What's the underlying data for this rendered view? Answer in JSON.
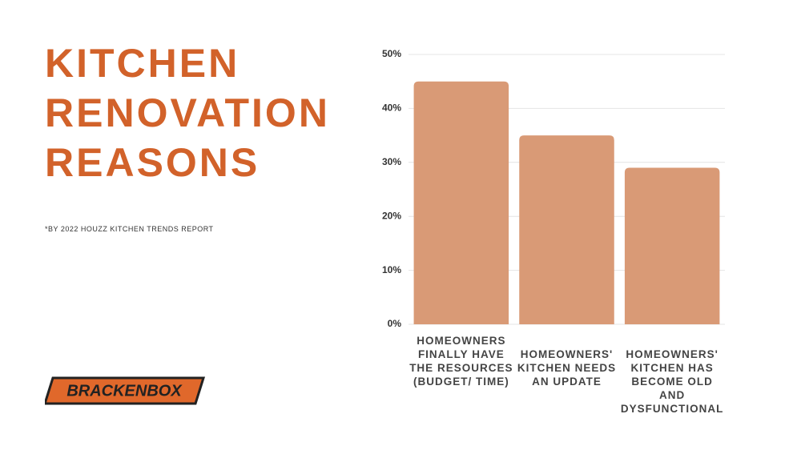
{
  "title": "KITCHEN RENOVATION REASONS",
  "footnote": "*BY 2022 HOUZZ KITCHEN TRENDS REPORT",
  "logo": "BRACKENBOX",
  "chart_data": {
    "type": "bar",
    "categories": [
      "HOMEOWNERS FINALLY HAVE THE RESOURCES (BUDGET/ TIME)",
      "HOMEOWNERS' KITCHEN NEEDS AN UPDATE",
      "HOMEOWNERS' KITCHEN HAS BECOME OLD AND DYSFUNCTIONAL"
    ],
    "values": [
      45,
      35,
      29
    ],
    "color": "#d99a76",
    "ylim": [
      0,
      50
    ],
    "yticks": [
      {
        "value": 0,
        "label": "0%"
      },
      {
        "value": 10,
        "label": "10%"
      },
      {
        "value": 20,
        "label": "20%"
      },
      {
        "value": 30,
        "label": "30%"
      },
      {
        "value": 40,
        "label": "40%"
      },
      {
        "value": 50,
        "label": "50%"
      }
    ],
    "grid": true
  }
}
